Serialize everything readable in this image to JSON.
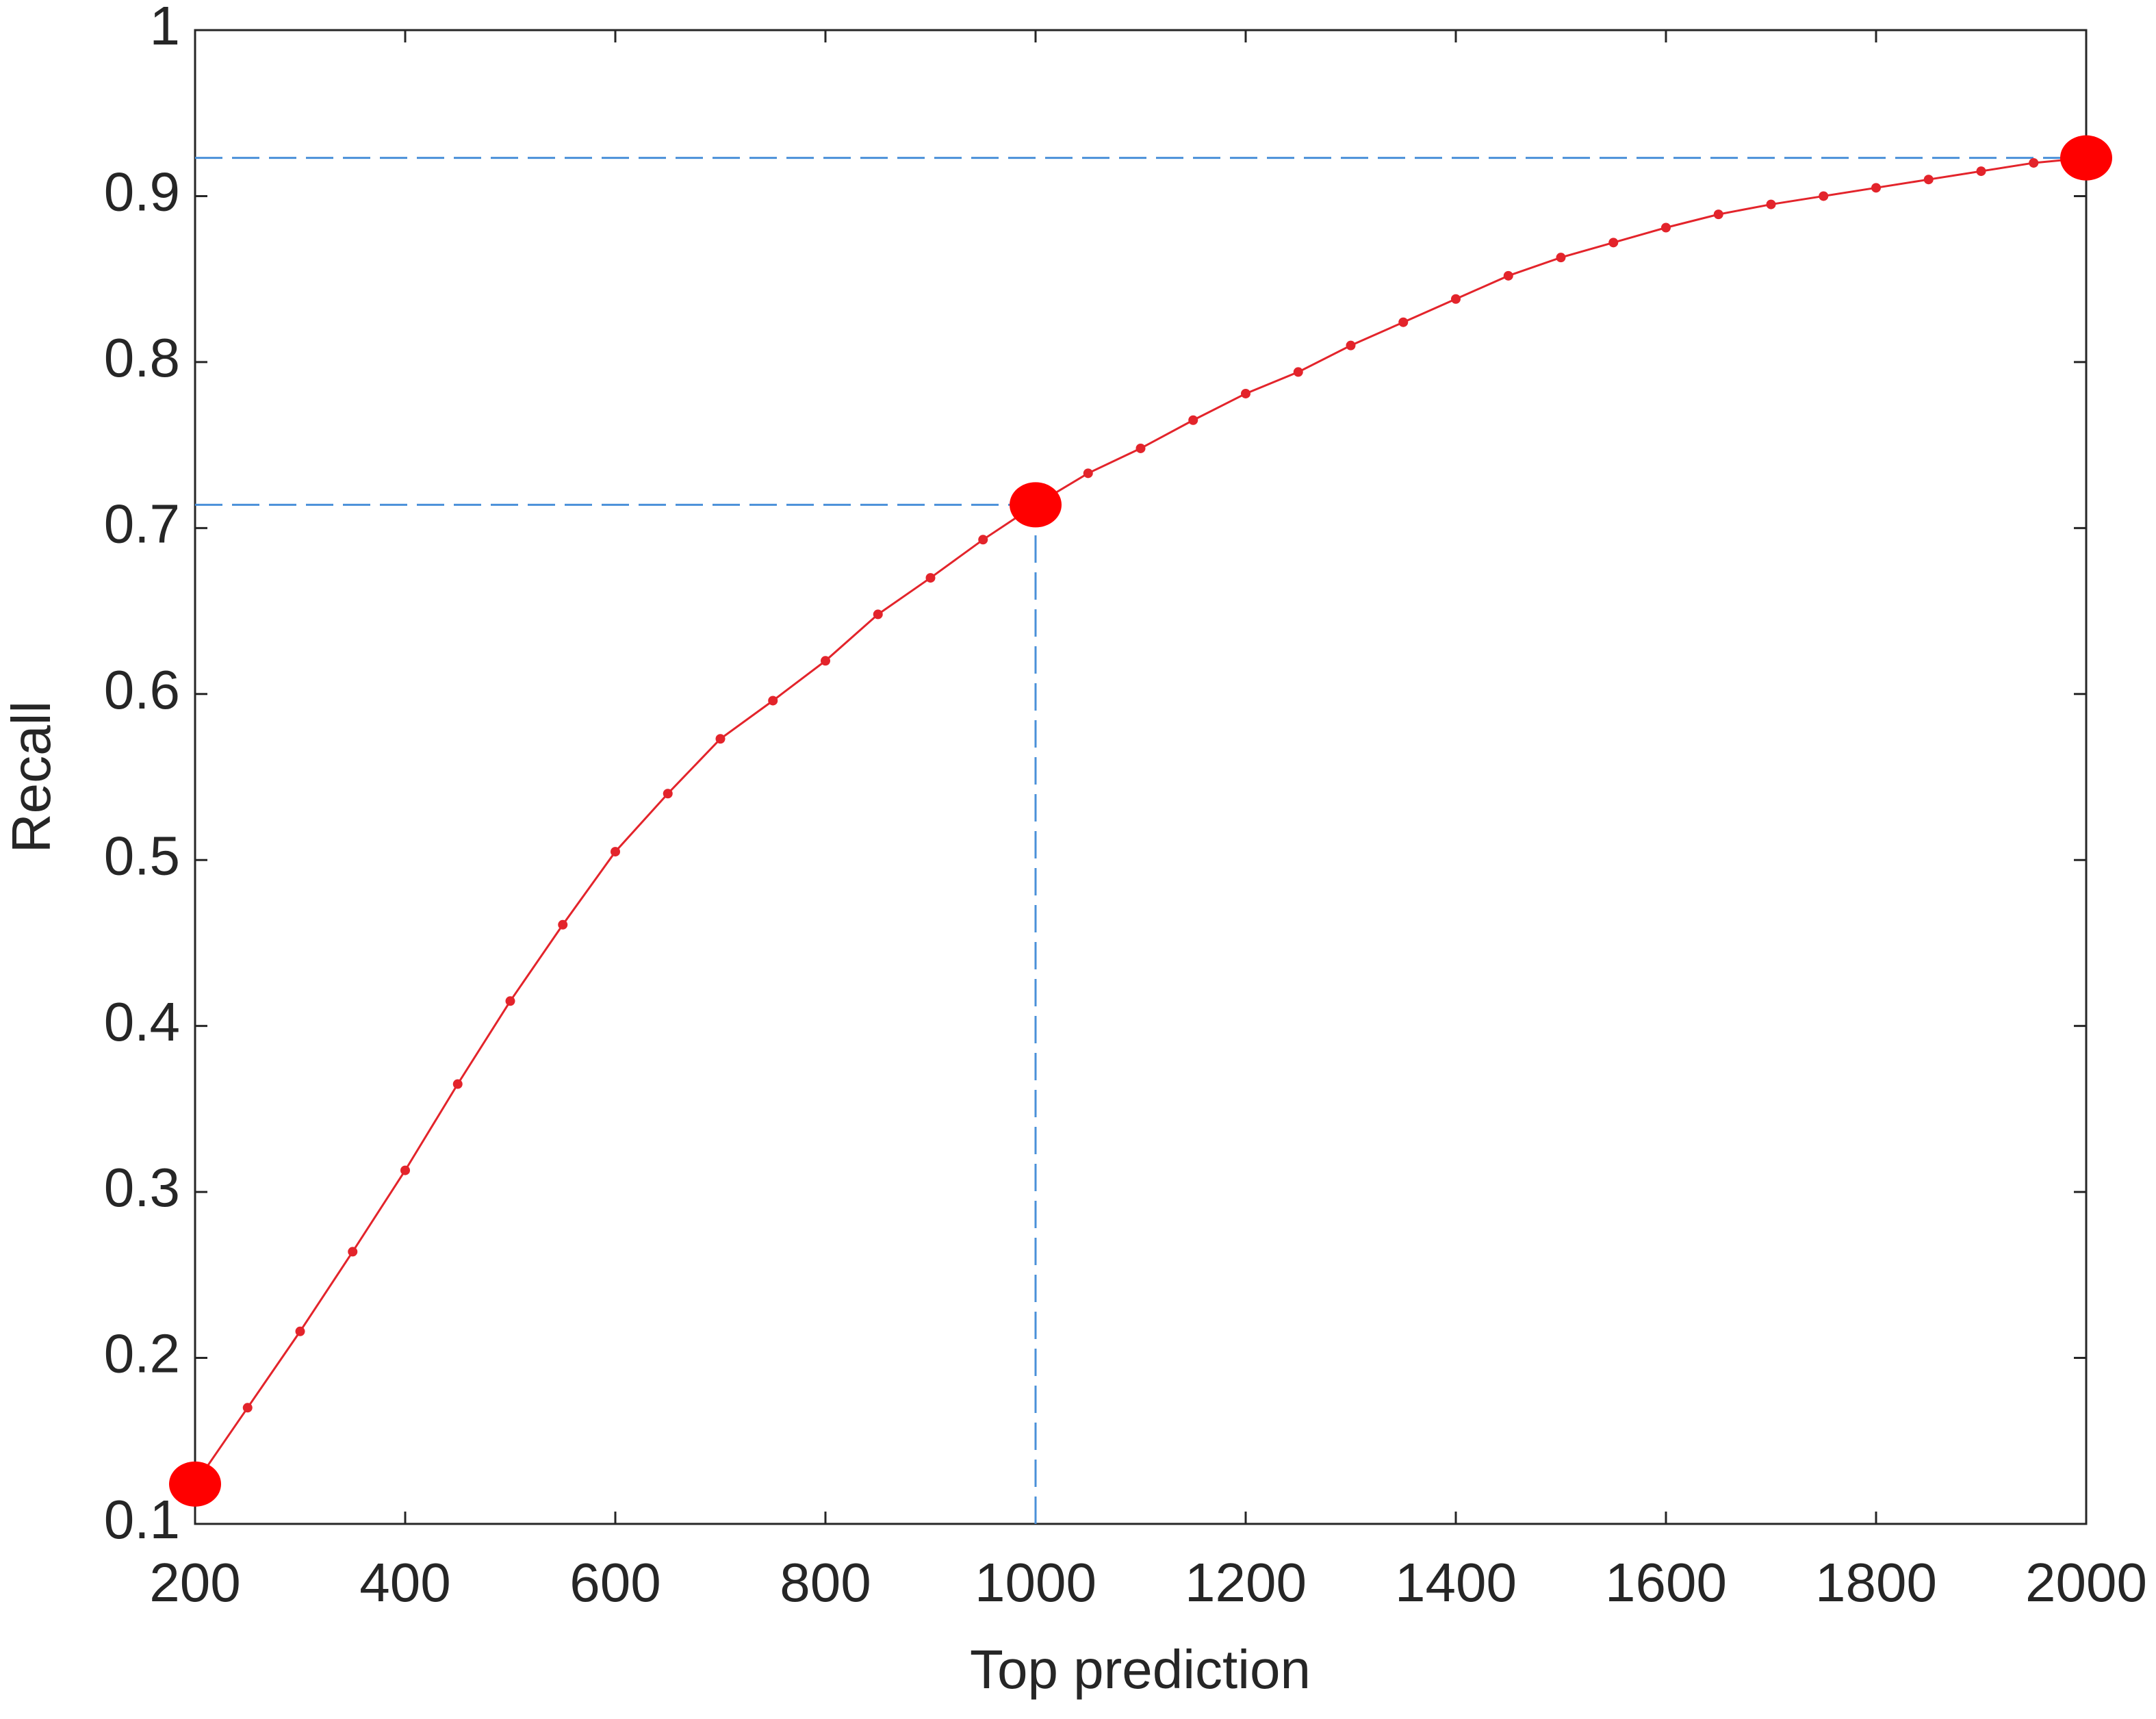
{
  "chart_data": {
    "type": "line",
    "x_label": "Top prediction",
    "y_label": "Recall",
    "x": [
      200,
      250,
      300,
      350,
      400,
      450,
      500,
      550,
      600,
      650,
      700,
      750,
      800,
      850,
      900,
      950,
      1000,
      1050,
      1100,
      1150,
      1200,
      1250,
      1300,
      1350,
      1400,
      1450,
      1500,
      1550,
      1600,
      1650,
      1700,
      1750,
      1800,
      1850,
      1900,
      1950,
      2000
    ],
    "series": [
      {
        "color": "#e3242b",
        "values": [
          0.124,
          0.17,
          0.216,
          0.264,
          0.313,
          0.365,
          0.415,
          0.461,
          0.505,
          0.54,
          0.573,
          0.596,
          0.62,
          0.648,
          0.67,
          0.693,
          0.714,
          0.733,
          0.748,
          0.765,
          0.781,
          0.794,
          0.81,
          0.824,
          0.838,
          0.852,
          0.863,
          0.872,
          0.881,
          0.889,
          0.895,
          0.9,
          0.905,
          0.91,
          0.915,
          0.92,
          0.923
        ]
      }
    ],
    "highlight": {
      "color": "#ff0000",
      "x": [
        200,
        1000,
        2000
      ],
      "values": [
        0.124,
        0.714,
        0.923
      ]
    },
    "guide_color": "#4a90d9",
    "xlim": [
      200,
      2000
    ],
    "xticks": [
      200,
      400,
      600,
      800,
      1000,
      1200,
      1400,
      1600,
      1800,
      2000
    ],
    "ylim": [
      0.1,
      1
    ],
    "yticks": [
      0.1,
      0.2,
      0.3,
      0.4,
      0.5,
      0.6,
      0.7,
      0.8,
      0.9,
      1
    ]
  }
}
